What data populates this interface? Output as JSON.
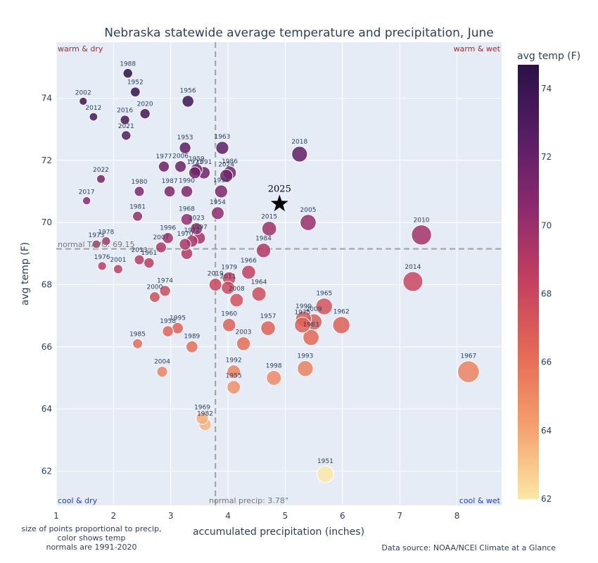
{
  "colors": {
    "background": "#e5ecf6",
    "grid": "#ffffff",
    "warm": "#a52a2a",
    "cool": "#1f3fd6",
    "text": "#2a3f5f",
    "normal_line": "#a0a0a0"
  },
  "chart_data": {
    "type": "scatter",
    "title": "Nebraska statewide average temperature and precipitation, June",
    "xlabel": "accumulated precipitation (inches)",
    "ylabel": "avg temp (F)",
    "xlim": [
      1,
      8.78
    ],
    "ylim": [
      60.9,
      75.8
    ],
    "x_ticks": [
      1,
      2,
      3,
      4,
      5,
      6,
      7,
      8
    ],
    "y_ticks": [
      62,
      64,
      66,
      68,
      70,
      72,
      74
    ],
    "colorbar": {
      "title": "avg temp (F)",
      "range": [
        62,
        74.7
      ],
      "ticks": [
        62,
        64,
        66,
        68,
        70,
        72,
        74
      ],
      "colorscale": [
        "#fce7a5",
        "#f5a06d",
        "#e46a55",
        "#c44060",
        "#8e2a6e",
        "#571e63",
        "#2b1146"
      ]
    },
    "normal_temp": 69.15,
    "normal_precip": 3.78,
    "normal_temp_label": "normal TAVG: 69.15",
    "normal_precip_label": "normal precip: 3.78\"",
    "quadrants": {
      "top_left": "warm & dry",
      "top_right": "warm & wet",
      "bottom_left": "cool & dry",
      "bottom_right": "cool & wet"
    },
    "highlight": {
      "year": "2025",
      "x": 4.9,
      "y": 70.6
    },
    "points": [
      {
        "year": "1988",
        "x": 2.25,
        "y": 74.8
      },
      {
        "year": "1952",
        "x": 2.38,
        "y": 74.2
      },
      {
        "year": "2002",
        "x": 1.47,
        "y": 73.9
      },
      {
        "year": "1956",
        "x": 3.3,
        "y": 73.9
      },
      {
        "year": "2012",
        "x": 1.65,
        "y": 73.4
      },
      {
        "year": "2016",
        "x": 2.2,
        "y": 73.3
      },
      {
        "year": "2020",
        "x": 2.55,
        "y": 73.5
      },
      {
        "year": "2021",
        "x": 2.22,
        "y": 72.8
      },
      {
        "year": "1953",
        "x": 3.25,
        "y": 72.4
      },
      {
        "year": "1963",
        "x": 3.9,
        "y": 72.4
      },
      {
        "year": "2018",
        "x": 5.25,
        "y": 72.2
      },
      {
        "year": "1977",
        "x": 2.88,
        "y": 71.8
      },
      {
        "year": "2006",
        "x": 3.17,
        "y": 71.8
      },
      {
        "year": "1959",
        "x": 3.45,
        "y": 71.7
      },
      {
        "year": "1971",
        "x": 3.42,
        "y": 71.6
      },
      {
        "year": "1991",
        "x": 3.58,
        "y": 71.6
      },
      {
        "year": "1986",
        "x": 4.03,
        "y": 71.6
      },
      {
        "year": "2024",
        "x": 3.97,
        "y": 71.5
      },
      {
        "year": "2022",
        "x": 1.78,
        "y": 71.4
      },
      {
        "year": "1980",
        "x": 2.45,
        "y": 71.0
      },
      {
        "year": "1987",
        "x": 2.98,
        "y": 71.0
      },
      {
        "year": "1990",
        "x": 3.28,
        "y": 71.0
      },
      {
        "year": "1994",
        "x": 3.88,
        "y": 71.0
      },
      {
        "year": "2017",
        "x": 1.53,
        "y": 70.7
      },
      {
        "year": "1954",
        "x": 3.82,
        "y": 70.3
      },
      {
        "year": "1981",
        "x": 2.42,
        "y": 70.2
      },
      {
        "year": "1968",
        "x": 3.28,
        "y": 70.1
      },
      {
        "year": "2005",
        "x": 5.4,
        "y": 70.0
      },
      {
        "year": "2015",
        "x": 4.72,
        "y": 69.8
      },
      {
        "year": "2023",
        "x": 3.45,
        "y": 69.8
      },
      {
        "year": "2010",
        "x": 7.38,
        "y": 69.6
      },
      {
        "year": "1996",
        "x": 2.95,
        "y": 69.5
      },
      {
        "year": "1997",
        "x": 3.5,
        "y": 69.5
      },
      {
        "year": "1978",
        "x": 1.87,
        "y": 69.4
      },
      {
        "year": "1972",
        "x": 3.37,
        "y": 69.4
      },
      {
        "year": "1973",
        "x": 1.7,
        "y": 69.3
      },
      {
        "year": "2007",
        "x": 2.83,
        "y": 69.2
      },
      {
        "year": "1970",
        "x": 3.25,
        "y": 69.3
      },
      {
        "year": "1984",
        "x": 4.62,
        "y": 69.1
      },
      {
        "year": "1976",
        "x": 1.8,
        "y": 68.6
      },
      {
        "year": "2013",
        "x": 2.45,
        "y": 68.8
      },
      {
        "year": "1961",
        "x": 2.62,
        "y": 68.7
      },
      {
        "year": "1962b",
        "x": 3.28,
        "y": 69.0
      },
      {
        "year": "2001",
        "x": 2.08,
        "y": 68.5
      },
      {
        "year": "1966",
        "x": 4.36,
        "y": 68.4
      },
      {
        "year": "1979",
        "x": 4.02,
        "y": 68.2
      },
      {
        "year": "2011",
        "x": 4.0,
        "y": 67.9
      },
      {
        "year": "2019",
        "x": 3.78,
        "y": 68.0
      },
      {
        "year": "2014",
        "x": 7.23,
        "y": 68.1
      },
      {
        "year": "1974",
        "x": 2.9,
        "y": 67.8
      },
      {
        "year": "2008",
        "x": 4.15,
        "y": 67.5
      },
      {
        "year": "1964",
        "x": 4.54,
        "y": 67.7
      },
      {
        "year": "2000",
        "x": 2.72,
        "y": 67.6
      },
      {
        "year": "1965",
        "x": 5.68,
        "y": 67.3
      },
      {
        "year": "1999",
        "x": 5.32,
        "y": 66.9
      },
      {
        "year": "1975",
        "x": 5.3,
        "y": 66.7
      },
      {
        "year": "2009",
        "x": 5.5,
        "y": 66.8
      },
      {
        "year": "1962",
        "x": 5.98,
        "y": 66.7
      },
      {
        "year": "1960",
        "x": 4.02,
        "y": 66.7
      },
      {
        "year": "1957",
        "x": 4.7,
        "y": 66.6
      },
      {
        "year": "1983",
        "x": 5.45,
        "y": 66.3
      },
      {
        "year": "1958",
        "x": 2.95,
        "y": 66.5
      },
      {
        "year": "1995",
        "x": 3.12,
        "y": 66.6
      },
      {
        "year": "2003",
        "x": 4.27,
        "y": 66.1
      },
      {
        "year": "1985",
        "x": 2.42,
        "y": 66.1
      },
      {
        "year": "1989",
        "x": 3.37,
        "y": 66.0
      },
      {
        "year": "1993",
        "x": 5.35,
        "y": 65.3
      },
      {
        "year": "1992",
        "x": 4.1,
        "y": 65.2
      },
      {
        "year": "1967",
        "x": 8.2,
        "y": 65.2
      },
      {
        "year": "2004",
        "x": 2.85,
        "y": 65.2
      },
      {
        "year": "1998",
        "x": 4.8,
        "y": 65.0
      },
      {
        "year": "1955",
        "x": 4.1,
        "y": 64.7
      },
      {
        "year": "1969",
        "x": 3.55,
        "y": 63.7
      },
      {
        "year": "1982",
        "x": 3.6,
        "y": 63.5
      },
      {
        "year": "1951",
        "x": 5.7,
        "y": 61.9
      }
    ]
  },
  "footnote": {
    "line1": "size of points proportional to precip,",
    "line2": "color shows temp",
    "line3": "normals are 1991-2020"
  },
  "data_source": "Data source: NOAA/NCEI Climate at a Glance"
}
